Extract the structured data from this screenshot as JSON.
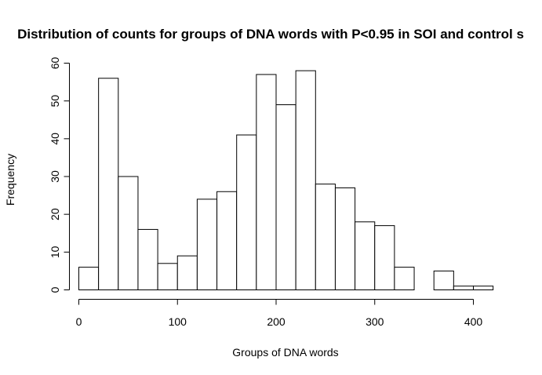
{
  "chart_data": {
    "type": "bar",
    "title": "Distribution of counts for groups of DNA words with P<0.95 in SOI and control s",
    "xlabel": "Groups of DNA words",
    "ylabel": "Frequency",
    "bin_width": 20,
    "bins": [
      {
        "x0": 0,
        "x1": 20,
        "count": 6
      },
      {
        "x0": 20,
        "x1": 40,
        "count": 56
      },
      {
        "x0": 40,
        "x1": 60,
        "count": 30
      },
      {
        "x0": 60,
        "x1": 80,
        "count": 16
      },
      {
        "x0": 80,
        "x1": 100,
        "count": 7
      },
      {
        "x0": 100,
        "x1": 120,
        "count": 9
      },
      {
        "x0": 120,
        "x1": 140,
        "count": 24
      },
      {
        "x0": 140,
        "x1": 160,
        "count": 26
      },
      {
        "x0": 160,
        "x1": 180,
        "count": 41
      },
      {
        "x0": 180,
        "x1": 200,
        "count": 57
      },
      {
        "x0": 200,
        "x1": 220,
        "count": 49
      },
      {
        "x0": 220,
        "x1": 240,
        "count": 58
      },
      {
        "x0": 240,
        "x1": 260,
        "count": 28
      },
      {
        "x0": 260,
        "x1": 280,
        "count": 27
      },
      {
        "x0": 280,
        "x1": 300,
        "count": 18
      },
      {
        "x0": 300,
        "x1": 320,
        "count": 17
      },
      {
        "x0": 320,
        "x1": 340,
        "count": 6
      },
      {
        "x0": 340,
        "x1": 360,
        "count": 0
      },
      {
        "x0": 360,
        "x1": 380,
        "count": 5
      },
      {
        "x0": 380,
        "x1": 400,
        "count": 1
      },
      {
        "x0": 400,
        "x1": 420,
        "count": 1
      }
    ],
    "xlim": [
      0,
      420
    ],
    "ylim": [
      0,
      60
    ],
    "xticks": [
      0,
      100,
      200,
      300,
      400
    ],
    "yticks": [
      0,
      10,
      20,
      30,
      40,
      50,
      60
    ],
    "grid": false,
    "legend": "none"
  }
}
